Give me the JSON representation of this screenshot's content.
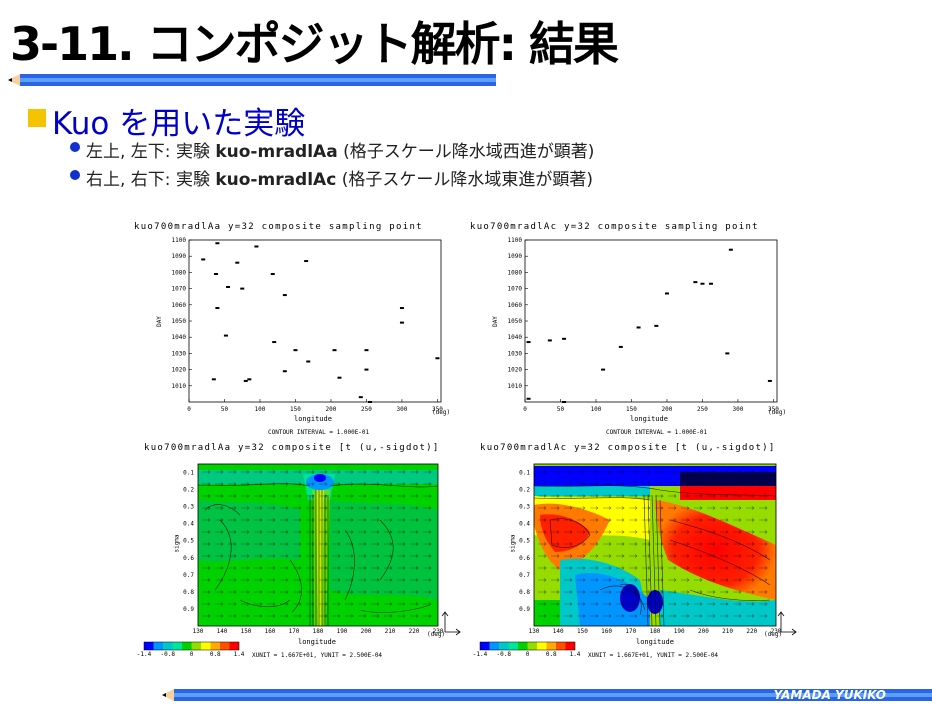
{
  "slide": {
    "title": "3-11. コンポジット解析: 結果",
    "heading": "Kuo を用いた実験",
    "bullets": [
      {
        "pre": "左上, 左下: 実験 ",
        "bold": "kuo-mradlAa",
        "post": " (格子スケール降水域西進が顕著)"
      },
      {
        "pre": "右上, 右下: 実験 ",
        "bold": "kuo-mradlAc",
        "post": " (格子スケール降水域東進が顕著)"
      }
    ],
    "author": "YAMADA YUKIKO"
  },
  "figure": {
    "tl_title": "kuo700mradlAa y=32 composite sampling point",
    "tr_title": "kuo700mradlAc y=32 composite sampling point",
    "bl_title": "kuo700mradlAa y=32 composite [t (u,-sigdot)]",
    "br_title": "kuo700mradlAc y=32 composite [t (u,-sigdot)]",
    "contour_interval": "CONTOUR INTERVAL = 1.000E-01",
    "vector_unit": "XUNIT = 1.667E+01, YUNIT = 2.500E-04",
    "colorbar_labels": [
      "-1.4",
      "-0.8",
      "0",
      "0.8",
      "1.4"
    ],
    "colorbar_colors": [
      "#0000ff",
      "#0096ff",
      "#00c8c8",
      "#00e6a0",
      "#00d200",
      "#96dc00",
      "#ffff00",
      "#ffaa00",
      "#ff5000",
      "#ff0000"
    ],
    "scatter": {
      "ylabel": "DAY",
      "xlabel": "longitude",
      "xunit": "(deg)",
      "x_ticks": [
        "0",
        "50",
        "100",
        "150",
        "200",
        "250",
        "300",
        "350"
      ],
      "y_ticks": [
        "1100",
        "1090",
        "1080",
        "1070",
        "1060",
        "1050",
        "1040",
        "1030",
        "1020",
        "1010"
      ]
    },
    "section": {
      "ylabel": "sigma",
      "xlabel": "longitude",
      "xunit": "(deg)",
      "x_ticks": [
        "130",
        "140",
        "150",
        "160",
        "170",
        "180",
        "190",
        "200",
        "210",
        "220",
        "230"
      ],
      "y_ticks": [
        "0.1",
        "0.2",
        "0.3",
        "0.4",
        "0.5",
        "0.6",
        "0.7",
        "0.8",
        "0.9"
      ]
    }
  },
  "chart_data": [
    {
      "type": "scatter",
      "title": "kuo700mradlAa y=32 composite sampling point",
      "xlabel": "longitude",
      "ylabel": "DAY",
      "xlim": [
        0,
        355
      ],
      "ylim": [
        1000,
        1100
      ],
      "points": [
        [
          20,
          1088
        ],
        [
          40,
          1098
        ],
        [
          95,
          1096
        ],
        [
          38,
          1079
        ],
        [
          55,
          1071
        ],
        [
          68,
          1086
        ],
        [
          75,
          1070
        ],
        [
          118,
          1079
        ],
        [
          135,
          1066
        ],
        [
          165,
          1087
        ],
        [
          40,
          1058
        ],
        [
          52,
          1041
        ],
        [
          120,
          1037
        ],
        [
          150,
          1032
        ],
        [
          168,
          1025
        ],
        [
          205,
          1032
        ],
        [
          250,
          1032
        ],
        [
          250,
          1020
        ],
        [
          135,
          1019
        ],
        [
          212,
          1015
        ],
        [
          35,
          1014
        ],
        [
          85,
          1014
        ],
        [
          80,
          1013
        ],
        [
          242,
          1003
        ],
        [
          255,
          1000
        ],
        [
          300,
          1058
        ],
        [
          300,
          1049
        ],
        [
          350,
          1027
        ]
      ]
    },
    {
      "type": "scatter",
      "title": "kuo700mradlAc y=32 composite sampling point",
      "xlabel": "longitude",
      "ylabel": "DAY",
      "xlim": [
        0,
        355
      ],
      "ylim": [
        1000,
        1100
      ],
      "points": [
        [
          5,
          1037
        ],
        [
          35,
          1038
        ],
        [
          55,
          1039
        ],
        [
          110,
          1020
        ],
        [
          135,
          1034
        ],
        [
          160,
          1046
        ],
        [
          185,
          1047
        ],
        [
          200,
          1067
        ],
        [
          240,
          1074
        ],
        [
          250,
          1073
        ],
        [
          262,
          1073
        ],
        [
          290,
          1094
        ],
        [
          285,
          1030
        ],
        [
          345,
          1013
        ],
        [
          5,
          1002
        ],
        [
          55,
          1000
        ]
      ]
    },
    {
      "type": "heatmap",
      "title": "kuo700mradlAa y=32 composite [t (u,-sigdot)]",
      "xlabel": "longitude",
      "ylabel": "sigma",
      "xlim": [
        130,
        230
      ],
      "ylim": [
        0.05,
        1.0
      ],
      "colorbar": [
        -1.4,
        1.4
      ],
      "contour_interval": 0.1
    },
    {
      "type": "heatmap",
      "title": "kuo700mradlAc y=32 composite [t (u,-sigdot)]",
      "xlabel": "longitude",
      "ylabel": "sigma",
      "xlim": [
        130,
        230
      ],
      "ylim": [
        0.05,
        1.0
      ],
      "colorbar": [
        -1.4,
        1.4
      ],
      "contour_interval": 0.1
    }
  ]
}
